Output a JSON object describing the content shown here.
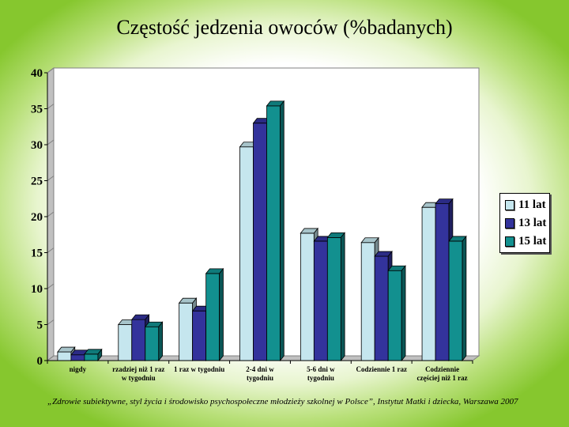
{
  "title": "Częstość jedzenia owoców (%badanych)",
  "source": "„Zdrowie subiektywne, styl życia i środowisko psychospołeczne młodzieży szkolnej w Polsce”, Instytut Matki i dziecka, Warszawa 2007",
  "chart_data": {
    "type": "bar",
    "title": "Częstość jedzenia owoców (%badanych)",
    "xlabel": "",
    "ylabel": "",
    "ylim": [
      0,
      40
    ],
    "yticks": [
      "0",
      "5",
      "10",
      "15",
      "20",
      "25",
      "30",
      "35",
      "40"
    ],
    "categories": [
      [
        "nigdy"
      ],
      [
        "rzadziej niż 1 raz",
        "w tygodniu"
      ],
      [
        "1 raz w tygodniu"
      ],
      [
        "2-4 dni w",
        "tygodniu"
      ],
      [
        "5-6 dni w",
        "tygodniu"
      ],
      [
        "Codziennie 1 raz"
      ],
      [
        "Codziennie",
        "częściej niż 1 raz"
      ]
    ],
    "series": [
      {
        "name": "11 lat",
        "color": "#c5e6ee",
        "values": [
          1.2,
          5.0,
          8.0,
          29.7,
          17.7,
          16.4,
          21.3
        ]
      },
      {
        "name": "13 lat",
        "color": "#33339c",
        "values": [
          0.8,
          5.7,
          6.9,
          33.0,
          16.6,
          14.5,
          21.8
        ]
      },
      {
        "name": "15 lat",
        "color": "#12908f",
        "values": [
          0.9,
          4.7,
          12.1,
          35.4,
          17.1,
          12.5,
          16.6
        ]
      }
    ],
    "legend_position": "right",
    "grid": false,
    "style": "3d-clustered-column"
  }
}
